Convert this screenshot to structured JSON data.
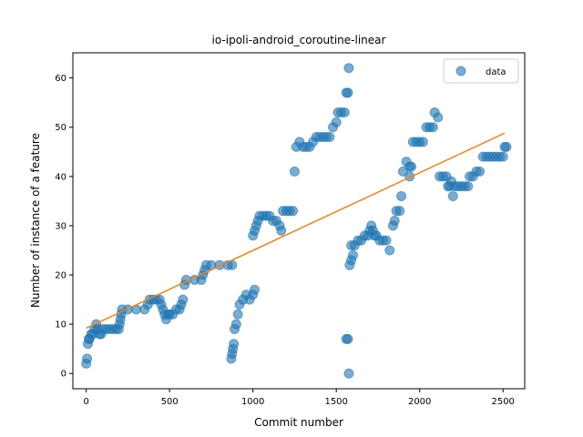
{
  "chart_data": {
    "type": "scatter",
    "title": "io-ipoli-android_coroutine-linear",
    "xlabel": "Commit number",
    "ylabel": "Number of instance of a feature",
    "xlim": [
      -80,
      2630
    ],
    "ylim": [
      -3.1,
      65.1
    ],
    "xticks": [
      0,
      500,
      1000,
      1500,
      2000,
      2500
    ],
    "yticks": [
      0,
      10,
      20,
      30,
      40,
      50,
      60
    ],
    "legend": {
      "position": "top-right",
      "entries": [
        "data"
      ]
    },
    "colors": {
      "data": "#1f77b4",
      "fit": "#ff7f0e"
    },
    "series": [
      {
        "name": "data",
        "kind": "scatter",
        "points": [
          [
            0,
            2
          ],
          [
            5,
            3
          ],
          [
            10,
            6
          ],
          [
            15,
            7
          ],
          [
            20,
            7
          ],
          [
            30,
            8
          ],
          [
            40,
            8
          ],
          [
            50,
            9
          ],
          [
            60,
            10
          ],
          [
            70,
            9
          ],
          [
            80,
            8
          ],
          [
            90,
            8
          ],
          [
            100,
            9
          ],
          [
            120,
            9
          ],
          [
            140,
            9
          ],
          [
            160,
            9
          ],
          [
            180,
            9
          ],
          [
            195,
            9
          ],
          [
            200,
            10
          ],
          [
            205,
            11
          ],
          [
            210,
            12
          ],
          [
            215,
            13
          ],
          [
            250,
            13
          ],
          [
            300,
            13
          ],
          [
            350,
            13
          ],
          [
            370,
            14
          ],
          [
            380,
            15
          ],
          [
            400,
            15
          ],
          [
            420,
            15
          ],
          [
            440,
            15
          ],
          [
            450,
            14
          ],
          [
            460,
            13
          ],
          [
            470,
            12
          ],
          [
            480,
            11
          ],
          [
            490,
            12
          ],
          [
            500,
            12
          ],
          [
            520,
            12
          ],
          [
            540,
            13
          ],
          [
            560,
            13
          ],
          [
            570,
            14
          ],
          [
            580,
            15
          ],
          [
            590,
            18
          ],
          [
            600,
            19
          ],
          [
            650,
            19
          ],
          [
            690,
            19
          ],
          [
            700,
            20
          ],
          [
            710,
            21
          ],
          [
            720,
            22
          ],
          [
            750,
            22
          ],
          [
            800,
            22
          ],
          [
            850,
            22
          ],
          [
            875,
            22
          ],
          [
            870,
            3
          ],
          [
            875,
            4
          ],
          [
            880,
            5
          ],
          [
            885,
            6
          ],
          [
            890,
            9
          ],
          [
            900,
            10
          ],
          [
            910,
            12
          ],
          [
            920,
            14
          ],
          [
            940,
            15
          ],
          [
            960,
            16
          ],
          [
            980,
            15
          ],
          [
            1000,
            16
          ],
          [
            1010,
            17
          ],
          [
            1000,
            28
          ],
          [
            1010,
            29
          ],
          [
            1020,
            30
          ],
          [
            1030,
            31
          ],
          [
            1040,
            32
          ],
          [
            1060,
            32
          ],
          [
            1080,
            32
          ],
          [
            1100,
            32
          ],
          [
            1120,
            31
          ],
          [
            1140,
            31
          ],
          [
            1160,
            30
          ],
          [
            1170,
            29
          ],
          [
            1180,
            33
          ],
          [
            1200,
            33
          ],
          [
            1220,
            33
          ],
          [
            1240,
            33
          ],
          [
            1250,
            41
          ],
          [
            1260,
            46
          ],
          [
            1280,
            47
          ],
          [
            1300,
            46
          ],
          [
            1320,
            46
          ],
          [
            1340,
            46
          ],
          [
            1360,
            47
          ],
          [
            1380,
            48
          ],
          [
            1400,
            48
          ],
          [
            1420,
            48
          ],
          [
            1440,
            48
          ],
          [
            1460,
            48
          ],
          [
            1480,
            50
          ],
          [
            1500,
            51
          ],
          [
            1510,
            53
          ],
          [
            1530,
            53
          ],
          [
            1550,
            53
          ],
          [
            1560,
            57
          ],
          [
            1570,
            57
          ],
          [
            1575,
            62
          ],
          [
            1560,
            7
          ],
          [
            1570,
            7
          ],
          [
            1575,
            0
          ],
          [
            1580,
            22
          ],
          [
            1590,
            23
          ],
          [
            1600,
            24
          ],
          [
            1590,
            26
          ],
          [
            1610,
            26
          ],
          [
            1630,
            27
          ],
          [
            1650,
            27
          ],
          [
            1670,
            28
          ],
          [
            1690,
            28
          ],
          [
            1700,
            29
          ],
          [
            1710,
            30
          ],
          [
            1720,
            29
          ],
          [
            1730,
            28
          ],
          [
            1740,
            28
          ],
          [
            1760,
            27
          ],
          [
            1780,
            27
          ],
          [
            1800,
            27
          ],
          [
            1820,
            25
          ],
          [
            1840,
            30
          ],
          [
            1850,
            31
          ],
          [
            1860,
            33
          ],
          [
            1880,
            33
          ],
          [
            1890,
            36
          ],
          [
            1900,
            41
          ],
          [
            1920,
            43
          ],
          [
            1940,
            42
          ],
          [
            1950,
            42
          ],
          [
            1940,
            40
          ],
          [
            1960,
            47
          ],
          [
            1980,
            47
          ],
          [
            2000,
            47
          ],
          [
            2020,
            47
          ],
          [
            2040,
            50
          ],
          [
            2060,
            50
          ],
          [
            2080,
            50
          ],
          [
            2090,
            53
          ],
          [
            2110,
            52
          ],
          [
            2120,
            40
          ],
          [
            2140,
            40
          ],
          [
            2160,
            40
          ],
          [
            2170,
            38
          ],
          [
            2180,
            38
          ],
          [
            2190,
            39
          ],
          [
            2200,
            36
          ],
          [
            2210,
            38
          ],
          [
            2230,
            38
          ],
          [
            2250,
            38
          ],
          [
            2270,
            38
          ],
          [
            2290,
            38
          ],
          [
            2300,
            40
          ],
          [
            2320,
            40
          ],
          [
            2340,
            41
          ],
          [
            2360,
            41
          ],
          [
            2380,
            44
          ],
          [
            2400,
            44
          ],
          [
            2420,
            44
          ],
          [
            2440,
            44
          ],
          [
            2460,
            44
          ],
          [
            2480,
            44
          ],
          [
            2500,
            44
          ],
          [
            2510,
            46
          ],
          [
            2520,
            46
          ]
        ]
      },
      {
        "name": "",
        "kind": "line",
        "points": [
          [
            0,
            9.2
          ],
          [
            2510,
            48.8
          ]
        ]
      }
    ]
  }
}
